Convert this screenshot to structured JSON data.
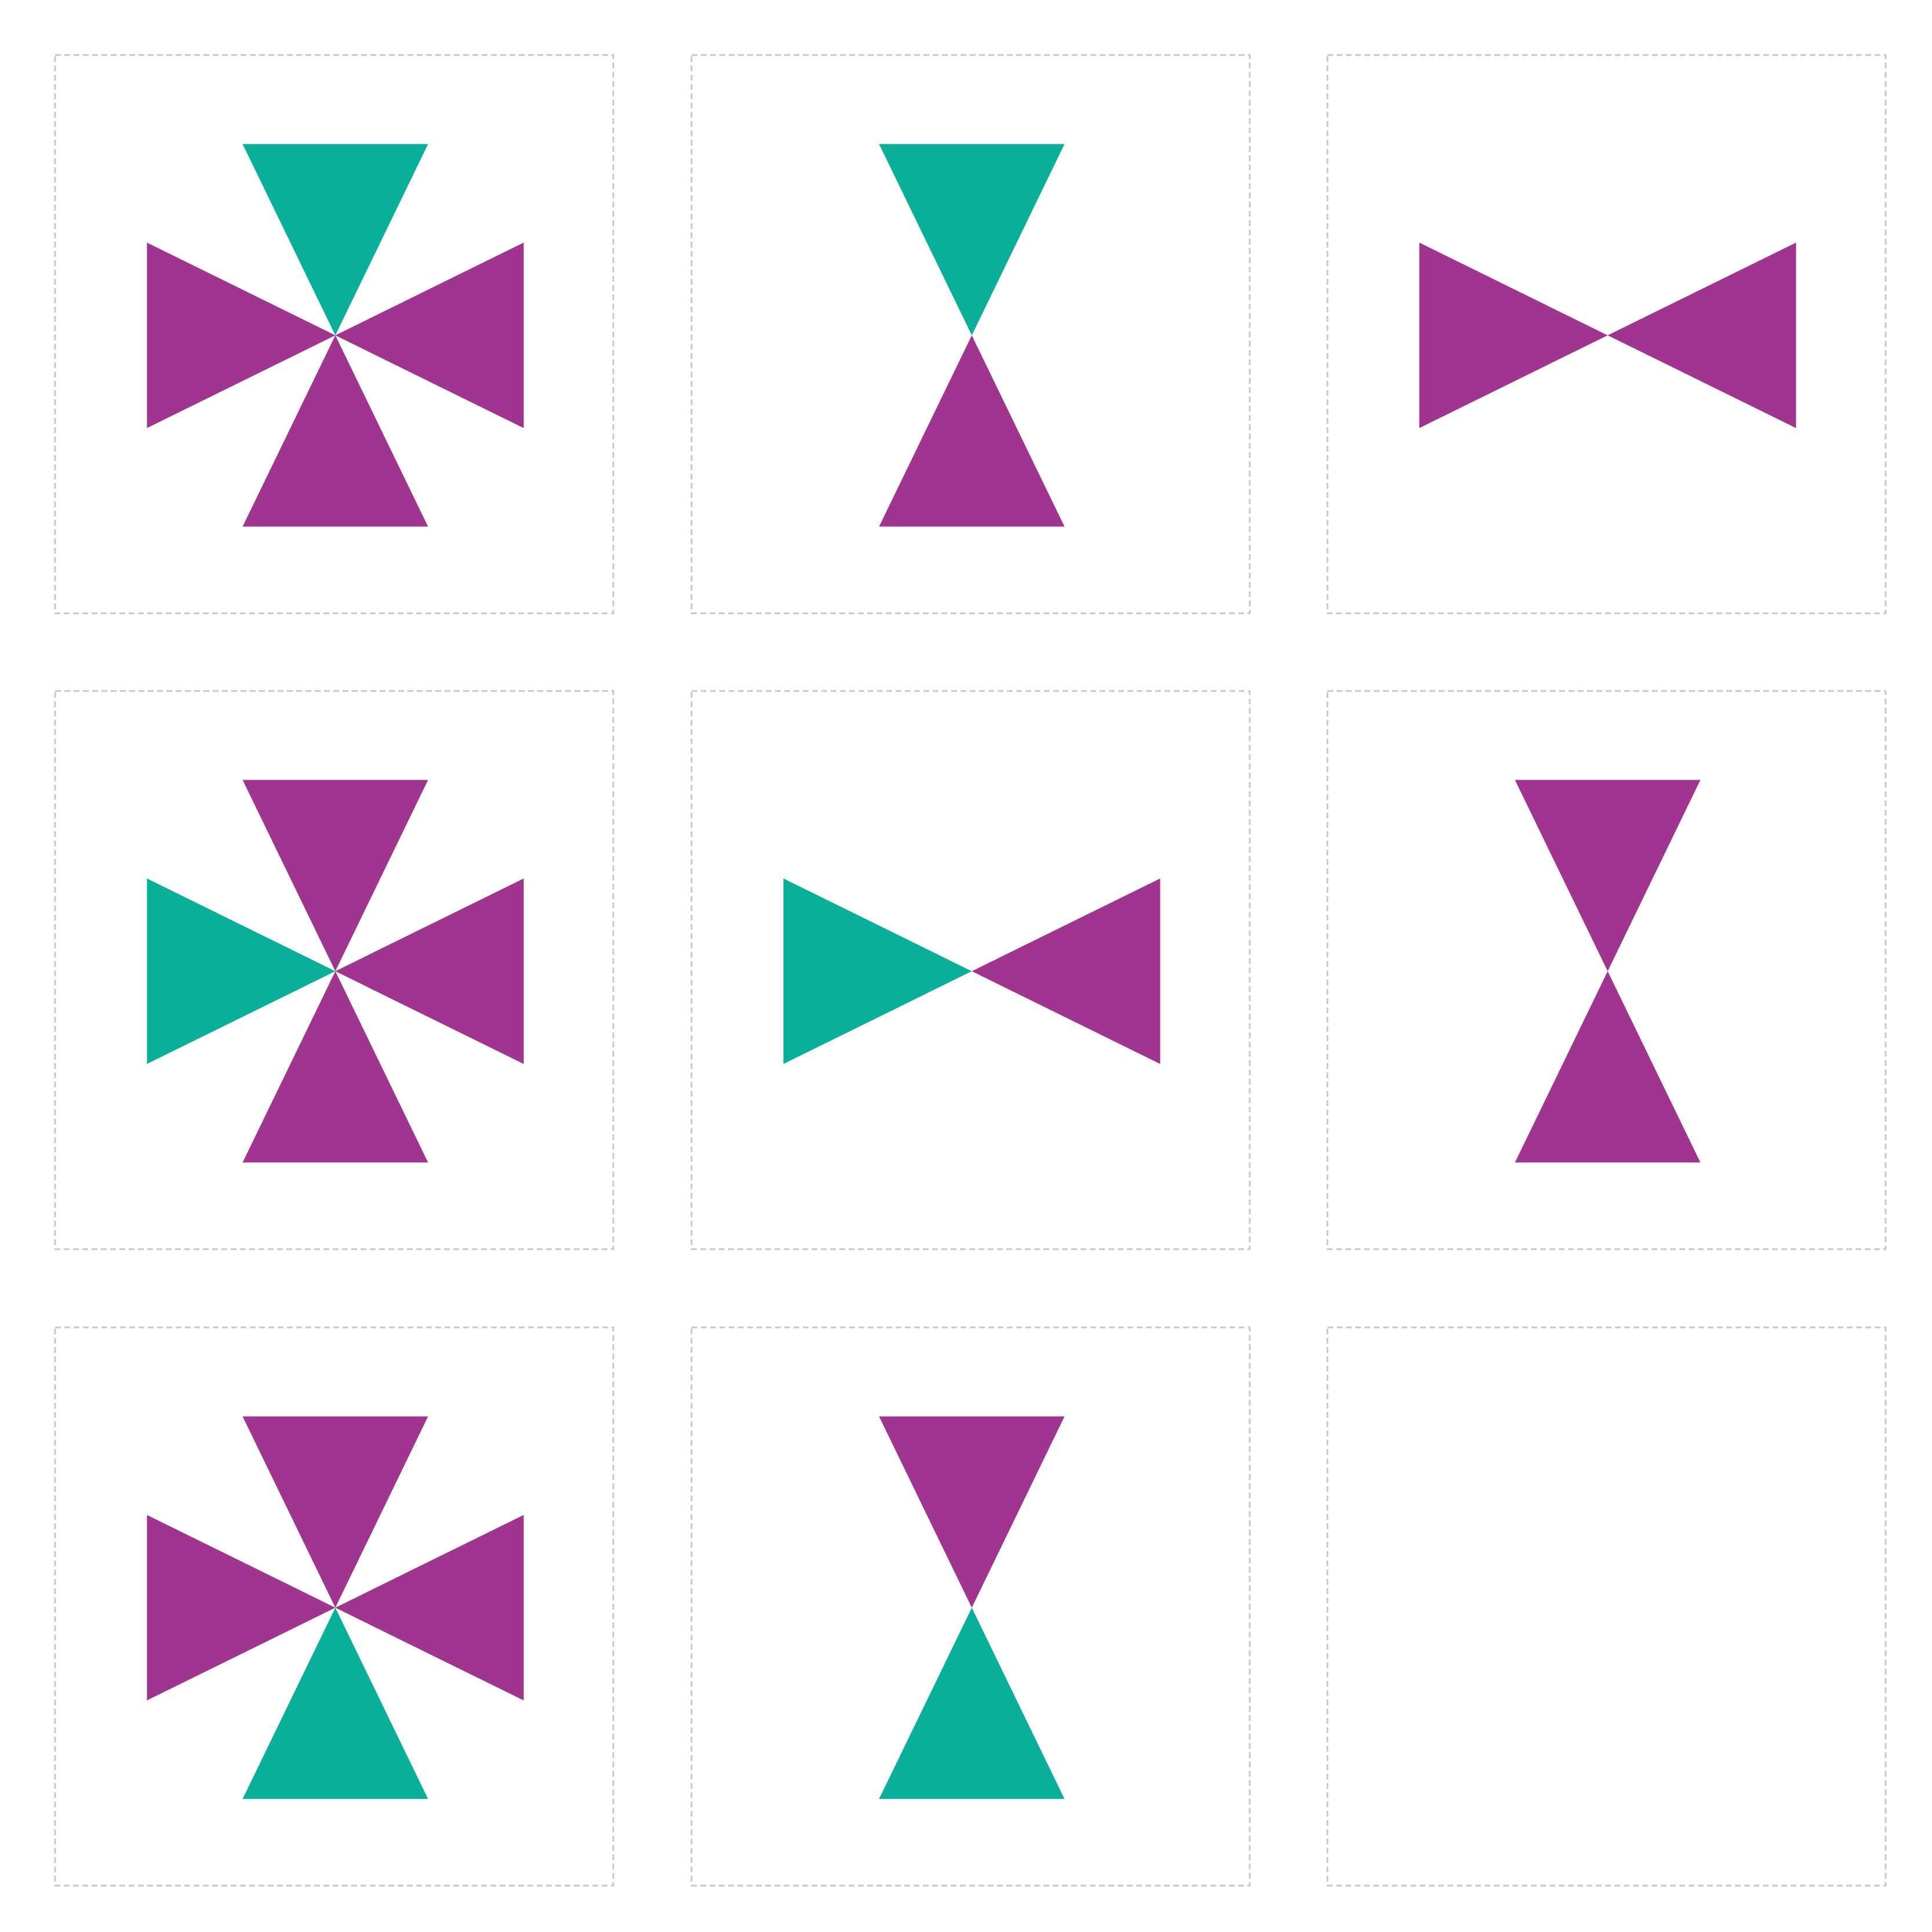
{
  "colors": {
    "purple": "#a0358f",
    "teal": "#0aaf99",
    "frame": "#c8c8c8",
    "background": "#ffffff"
  },
  "puzzle": {
    "rows": 3,
    "cols": 3,
    "cells": [
      {
        "row": 1,
        "col": 1,
        "triangles": {
          "top": "teal",
          "right": "purple",
          "bottom": "purple",
          "left": "purple"
        }
      },
      {
        "row": 1,
        "col": 2,
        "triangles": {
          "top": "teal",
          "bottom": "purple"
        }
      },
      {
        "row": 1,
        "col": 3,
        "triangles": {
          "right": "purple",
          "left": "purple"
        }
      },
      {
        "row": 2,
        "col": 1,
        "triangles": {
          "top": "purple",
          "right": "purple",
          "bottom": "purple",
          "left": "teal"
        }
      },
      {
        "row": 2,
        "col": 2,
        "triangles": {
          "right": "purple",
          "left": "teal"
        }
      },
      {
        "row": 2,
        "col": 3,
        "triangles": {
          "top": "purple",
          "bottom": "purple"
        }
      },
      {
        "row": 3,
        "col": 1,
        "triangles": {
          "top": "purple",
          "right": "purple",
          "bottom": "teal",
          "left": "purple"
        }
      },
      {
        "row": 3,
        "col": 2,
        "triangles": {
          "top": "purple",
          "bottom": "teal"
        }
      },
      {
        "row": 3,
        "col": 3,
        "triangles": {},
        "missing": true
      }
    ]
  }
}
